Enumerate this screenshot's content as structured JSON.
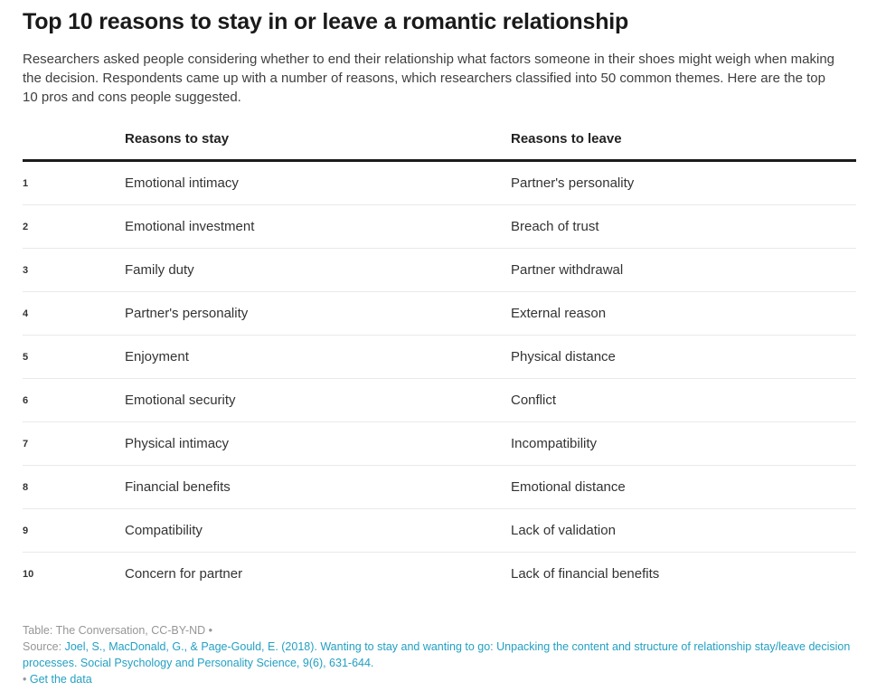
{
  "page": {
    "title": "Top 10 reasons to stay in or leave a romantic relationship",
    "description": "Researchers asked people considering whether to end their relationship what factors someone in their shoes might weigh when making the decision. Respondents came up with a number of reasons, which researchers classified into 50 common themes. Here are the top 10 pros and cons people suggested."
  },
  "table": {
    "columns": {
      "rank": "",
      "stay": "Reasons to stay",
      "leave": "Reasons to leave"
    },
    "rows": [
      {
        "rank": "1",
        "stay": "Emotional intimacy",
        "leave": "Partner's personality"
      },
      {
        "rank": "2",
        "stay": "Emotional investment",
        "leave": "Breach of trust"
      },
      {
        "rank": "3",
        "stay": "Family duty",
        "leave": "Partner withdrawal"
      },
      {
        "rank": "4",
        "stay": "Partner's personality",
        "leave": "External reason"
      },
      {
        "rank": "5",
        "stay": "Enjoyment",
        "leave": "Physical distance"
      },
      {
        "rank": "6",
        "stay": "Emotional security",
        "leave": "Conflict"
      },
      {
        "rank": "7",
        "stay": "Physical intimacy",
        "leave": "Incompatibility"
      },
      {
        "rank": "8",
        "stay": "Financial benefits",
        "leave": "Emotional distance"
      },
      {
        "rank": "9",
        "stay": "Compatibility",
        "leave": "Lack of validation"
      },
      {
        "rank": "10",
        "stay": "Concern for partner",
        "leave": "Lack of financial benefits"
      }
    ]
  },
  "footer": {
    "table_credit": "Table: The Conversation, CC-BY-ND •",
    "source_label": "Source: ",
    "source_link": "Joel, S., MacDonald, G., & Page-Gould, E. (2018). Wanting to stay and wanting to go: Unpacking the content and structure of relationship stay/leave decision processes. Social Psychology and Personality Science, 9(6), 631-644.",
    "get_data_bullet": "•",
    "get_data_label": "Get the data"
  },
  "colors": {
    "link": "#23a0c3",
    "heading": "#1a1a1a",
    "body_text": "#333333",
    "muted": "#969696",
    "header_rule": "#1c1c1c",
    "row_divider": "#e9e9e9"
  },
  "chart_data": {
    "type": "table",
    "title": "Top 10 reasons to stay in or leave a romantic relationship",
    "subtitle": "Researchers asked people considering whether to end their relationship what factors someone in their shoes might weigh when making the decision. Respondents came up with a number of reasons, which researchers classified into 50 common themes. Here are the top 10 pros and cons people suggested.",
    "columns": [
      "",
      "Reasons to stay",
      "Reasons to leave"
    ],
    "rows": [
      [
        "1",
        "Emotional intimacy",
        "Partner's personality"
      ],
      [
        "2",
        "Emotional investment",
        "Breach of trust"
      ],
      [
        "3",
        "Family duty",
        "Partner withdrawal"
      ],
      [
        "4",
        "Partner's personality",
        "External reason"
      ],
      [
        "5",
        "Enjoyment",
        "Physical distance"
      ],
      [
        "6",
        "Emotional security",
        "Conflict"
      ],
      [
        "7",
        "Physical intimacy",
        "Incompatibility"
      ],
      [
        "8",
        "Financial benefits",
        "Emotional distance"
      ],
      [
        "9",
        "Compatibility",
        "Lack of validation"
      ],
      [
        "10",
        "Concern for partner",
        "Lack of financial benefits"
      ]
    ],
    "credit": "Table: The Conversation, CC-BY-ND",
    "source": "Joel, S., MacDonald, G., & Page-Gould, E. (2018). Wanting to stay and wanting to go: Unpacking the content and structure of relationship stay/leave decision processes. Social Psychology and Personality Science, 9(6), 631-644."
  }
}
